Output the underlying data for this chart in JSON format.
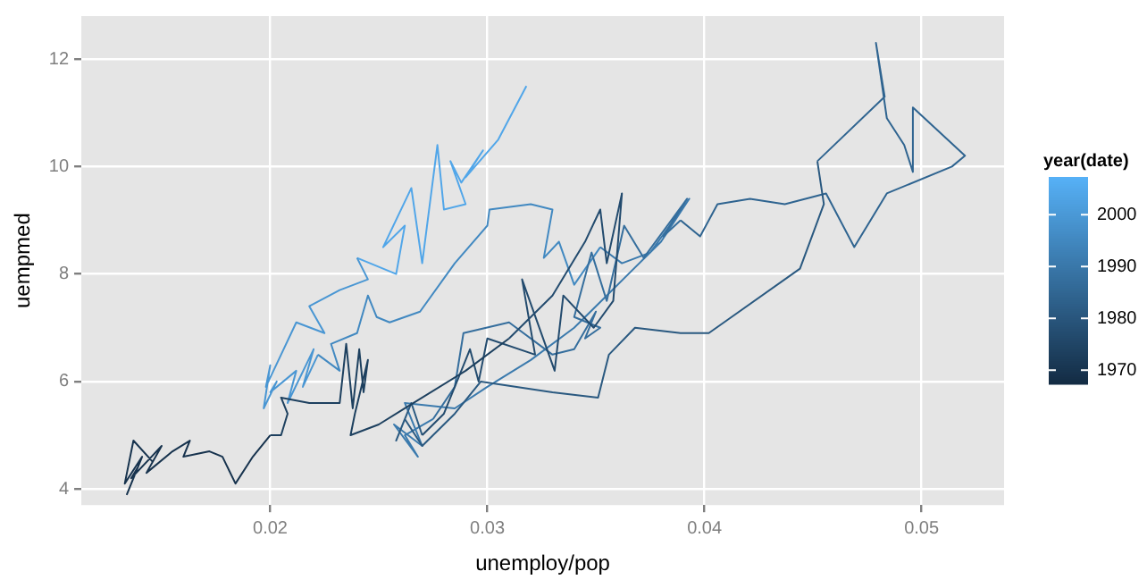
{
  "chart_data": {
    "type": "line",
    "xlabel": "unemploy/pop",
    "ylabel": "uempmed",
    "clabel": "year(date)",
    "clim": [
      1967.3,
      2007.3
    ],
    "cticks": [
      1970,
      1980,
      1990,
      2000
    ],
    "xlim": [
      0.0113,
      0.0538
    ],
    "ylim": [
      3.7,
      12.8
    ],
    "xticks": [
      0.02,
      0.03,
      0.04,
      0.05
    ],
    "yticks": [
      4,
      6,
      8,
      10,
      12
    ],
    "grid": true,
    "legend": false,
    "marker": "none",
    "series": [
      {
        "color": "#17334e",
        "x": [
          0.0146,
          0.0137,
          0.0133,
          0.0141,
          0.0134,
          0.0139,
          0.0136,
          0.015,
          0.0143,
          0.0155,
          0.0163,
          0.016,
          0.0172,
          0.0178,
          0.0184,
          0.0192,
          0.02
        ],
        "values": [
          4.5,
          4.9,
          4.1,
          4.6,
          3.9,
          4.4,
          4.2,
          4.8,
          4.3,
          4.7,
          4.9,
          4.6,
          4.7,
          4.6,
          4.1,
          4.6,
          5.0
        ]
      },
      {
        "color": "#1d405f",
        "x": [
          0.02,
          0.0205,
          0.0208,
          0.0205,
          0.0218,
          0.0232,
          0.0235,
          0.0238,
          0.0241,
          0.0243,
          0.0245,
          0.0239,
          0.0237,
          0.025,
          0.0262,
          0.029,
          0.031
        ],
        "values": [
          5.0,
          5.0,
          5.4,
          5.7,
          5.6,
          5.6,
          6.7,
          5.5,
          6.6,
          5.8,
          6.4,
          5.4,
          5.0,
          5.2,
          5.5,
          6.2,
          6.8
        ]
      },
      {
        "color": "#234b6e",
        "x": [
          0.031,
          0.033,
          0.0345,
          0.0352,
          0.0355,
          0.0362,
          0.0358,
          0.0349,
          0.0335,
          0.0331,
          0.0316,
          0.0322,
          0.03,
          0.0296,
          0.0292,
          0.028,
          0.027
        ],
        "values": [
          6.8,
          7.6,
          8.6,
          9.2,
          8.2,
          9.5,
          7.5,
          7.0,
          7.6,
          6.2,
          7.9,
          6.5,
          6.8,
          6.0,
          6.6,
          5.4,
          5.0
        ]
      },
      {
        "color": "#2a5980",
        "x": [
          0.027,
          0.0265,
          0.0258,
          0.0262,
          0.027,
          0.0285,
          0.0297,
          0.033,
          0.0351,
          0.0356,
          0.0368,
          0.0389,
          0.0402,
          0.0409,
          0.0444,
          0.0455,
          0.0452
        ],
        "values": [
          5.0,
          5.6,
          4.9,
          5.3,
          4.8,
          5.4,
          6.0,
          5.8,
          5.7,
          6.5,
          7.0,
          6.9,
          6.9,
          7.1,
          8.1,
          9.3,
          10.1
        ]
      },
      {
        "color": "#2f6490",
        "x": [
          0.0452,
          0.0483,
          0.0479,
          0.0484,
          0.0492,
          0.0496,
          0.0496,
          0.052,
          0.0514,
          0.0484,
          0.0469,
          0.0456,
          0.0437,
          0.0421,
          0.0406,
          0.0398,
          0.0389
        ],
        "values": [
          10.1,
          11.3,
          12.3,
          10.9,
          10.4,
          9.9,
          11.1,
          10.2,
          10.0,
          9.5,
          8.5,
          9.5,
          9.3,
          9.4,
          9.3,
          8.7,
          9.0
        ]
      },
      {
        "color": "#356e9d",
        "x": [
          0.0389,
          0.0381,
          0.0392,
          0.0372,
          0.0363,
          0.0355,
          0.0348,
          0.034,
          0.0352,
          0.0345,
          0.035,
          0.034,
          0.033,
          0.031,
          0.0289,
          0.0285,
          0.0275
        ],
        "values": [
          9.0,
          8.7,
          9.4,
          8.3,
          8.9,
          7.5,
          8.4,
          7.2,
          7.0,
          6.8,
          7.3,
          6.6,
          6.5,
          7.1,
          6.9,
          5.9,
          5.3
        ]
      },
      {
        "color": "#3b7aad",
        "x": [
          0.0275,
          0.0262,
          0.0268,
          0.0257,
          0.027,
          0.0262,
          0.0285,
          0.03,
          0.032,
          0.034,
          0.0355,
          0.0365,
          0.038,
          0.0393,
          0.0375,
          0.0362,
          0.0352
        ],
        "values": [
          5.3,
          5.0,
          4.6,
          5.2,
          4.8,
          5.6,
          5.5,
          5.9,
          6.4,
          7.0,
          7.6,
          8.0,
          8.6,
          9.4,
          8.4,
          8.2,
          8.5
        ]
      },
      {
        "color": "#4289c1",
        "x": [
          0.0352,
          0.034,
          0.0333,
          0.0326,
          0.033,
          0.032,
          0.0301,
          0.03,
          0.0285,
          0.0269,
          0.0255,
          0.0249,
          0.0245,
          0.024,
          0.0228,
          0.0232,
          0.0222
        ],
        "values": [
          8.5,
          7.8,
          8.6,
          8.3,
          9.2,
          9.3,
          9.2,
          8.9,
          8.2,
          7.3,
          7.1,
          7.2,
          7.6,
          6.9,
          6.7,
          6.2,
          6.5
        ]
      },
      {
        "color": "#4996d3",
        "x": [
          0.0222,
          0.0215,
          0.022,
          0.0208,
          0.0212,
          0.02,
          0.0203,
          0.0197,
          0.02,
          0.0198,
          0.0205,
          0.0212,
          0.0225,
          0.0218,
          0.0232,
          0.0245,
          0.024
        ],
        "values": [
          6.5,
          5.9,
          6.6,
          5.6,
          6.2,
          5.8,
          6.0,
          5.5,
          6.3,
          5.9,
          6.5,
          7.1,
          6.9,
          7.4,
          7.7,
          7.9,
          8.3
        ]
      },
      {
        "color": "#51a6e9",
        "x": [
          0.024,
          0.0258,
          0.0262,
          0.0252,
          0.0265,
          0.027,
          0.0277,
          0.028,
          0.029,
          0.0283,
          0.0288,
          0.0298,
          0.029,
          0.0305,
          0.0318
        ],
        "values": [
          8.3,
          8.0,
          8.9,
          8.5,
          9.6,
          8.2,
          10.4,
          9.2,
          9.3,
          10.1,
          9.7,
          10.3,
          9.8,
          10.5,
          11.5
        ]
      }
    ]
  }
}
